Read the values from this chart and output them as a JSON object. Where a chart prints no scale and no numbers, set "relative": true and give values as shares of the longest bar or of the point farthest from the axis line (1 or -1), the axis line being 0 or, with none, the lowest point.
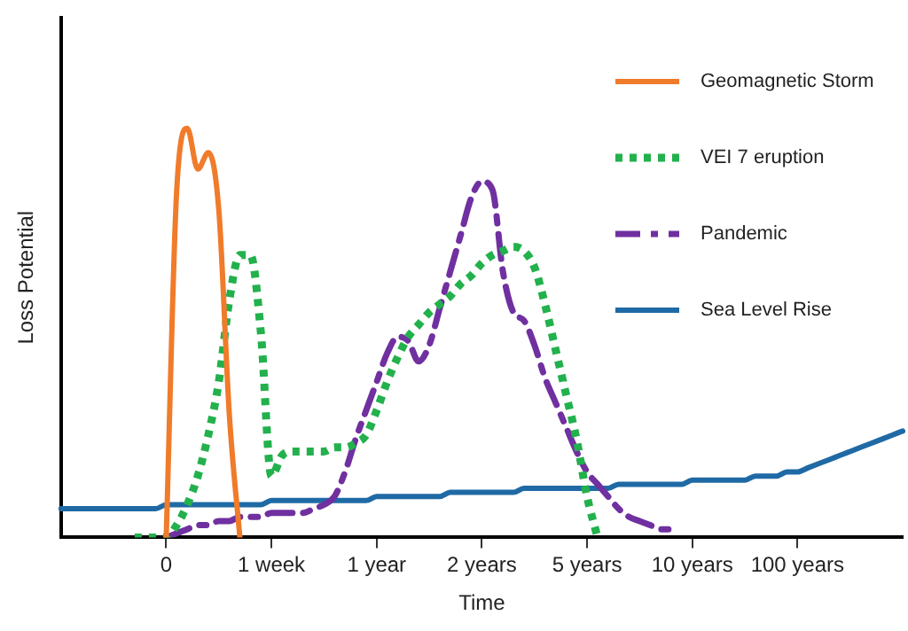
{
  "chart_data": {
    "type": "line",
    "relative": true,
    "xlabel": "Time",
    "ylabel": "Loss Potential",
    "legend": "top right",
    "grid": false,
    "marker": "none",
    "categories": [
      null,
      null,
      null,
      null,
      null,
      null,
      null,
      null,
      null,
      null,
      "0",
      null,
      null,
      null,
      null,
      null,
      null,
      null,
      null,
      null,
      "1 week",
      null,
      null,
      null,
      null,
      null,
      null,
      null,
      null,
      null,
      "1 year",
      null,
      null,
      null,
      null,
      null,
      null,
      null,
      null,
      null,
      "2 years",
      null,
      null,
      null,
      null,
      null,
      null,
      null,
      null,
      null,
      "5 years",
      null,
      null,
      null,
      null,
      null,
      null,
      null,
      null,
      null,
      "10 years",
      null,
      null,
      null,
      null,
      null,
      null,
      null,
      null,
      null,
      "100 years",
      null,
      null,
      null,
      null,
      null,
      null,
      null,
      null,
      null,
      null
    ],
    "series": [
      {
        "name": "Geomagnetic Storm",
        "color": "#f07b2a",
        "line_style": "solid",
        "values": [
          null,
          null,
          null,
          null,
          null,
          null,
          null,
          null,
          null,
          null,
          0,
          0.85,
          1,
          0.9,
          0.94,
          0.8,
          0.3,
          0,
          null,
          null,
          null,
          null,
          null,
          null,
          null,
          null,
          null,
          null,
          null,
          null,
          null,
          null,
          null,
          null,
          null,
          null,
          null,
          null,
          null,
          null,
          null,
          null,
          null,
          null,
          null,
          null,
          null,
          null,
          null,
          null,
          null,
          null,
          null,
          null,
          null,
          null,
          null,
          null,
          null,
          null,
          null,
          null,
          null,
          null,
          null,
          null,
          null,
          null,
          null,
          null,
          null,
          null,
          null,
          null,
          null,
          null,
          null,
          null,
          null,
          null,
          null
        ]
      },
      {
        "name": "VEI 7 eruption",
        "color": "#22b14c",
        "line_style": "dotted",
        "values": [
          null,
          null,
          null,
          null,
          null,
          null,
          null,
          0,
          0,
          0,
          0,
          0.03,
          0.08,
          0.15,
          0.25,
          0.38,
          0.58,
          0.69,
          0.69,
          0.5,
          0.15,
          0.2,
          0.21,
          0.21,
          0.21,
          0.21,
          0.22,
          0.22,
          0.23,
          0.25,
          0.31,
          0.38,
          0.44,
          0.49,
          0.52,
          0.55,
          0.57,
          0.59,
          0.62,
          0.64,
          0.67,
          0.69,
          0.7,
          0.71,
          0.7,
          0.66,
          0.57,
          0.46,
          0.35,
          0.24,
          0.1,
          0,
          null,
          null,
          null,
          null,
          null,
          null,
          null,
          null,
          null,
          null,
          null,
          null,
          null,
          null,
          null,
          null,
          null,
          null,
          null,
          null,
          null,
          null,
          null,
          null,
          null,
          null,
          null,
          null,
          null
        ]
      },
      {
        "name": "Pandemic",
        "color": "#7030a0",
        "line_style": "dashed",
        "values": [
          null,
          null,
          null,
          null,
          null,
          null,
          null,
          null,
          null,
          null,
          0,
          0.01,
          0.02,
          0.03,
          0.03,
          0.04,
          0.04,
          0.05,
          0.05,
          0.05,
          0.06,
          0.06,
          0.06,
          0.06,
          0.07,
          0.08,
          0.1,
          0.16,
          0.24,
          0.31,
          0.38,
          0.45,
          0.49,
          0.48,
          0.43,
          0.47,
          0.56,
          0.65,
          0.74,
          0.83,
          0.87,
          0.85,
          0.65,
          0.55,
          0.53,
          0.47,
          0.39,
          0.33,
          0.27,
          0.21,
          0.16,
          0.13,
          0.1,
          0.07,
          0.05,
          0.04,
          0.03,
          0.02,
          0.02,
          null,
          null,
          null,
          null,
          null,
          null,
          null,
          null,
          null,
          null,
          null,
          null,
          null,
          null,
          null,
          null,
          null,
          null,
          null,
          null,
          null,
          null
        ]
      },
      {
        "name": "Sea Level Rise",
        "color": "#1f6aa5",
        "line_style": "solid",
        "values": [
          0.07,
          0.07,
          0.07,
          0.07,
          0.07,
          0.07,
          0.07,
          0.07,
          0.07,
          0.07,
          0.08,
          0.08,
          0.08,
          0.08,
          0.08,
          0.08,
          0.08,
          0.08,
          0.08,
          0.08,
          0.09,
          0.09,
          0.09,
          0.09,
          0.09,
          0.09,
          0.09,
          0.09,
          0.09,
          0.09,
          0.1,
          0.1,
          0.1,
          0.1,
          0.1,
          0.1,
          0.1,
          0.11,
          0.11,
          0.11,
          0.11,
          0.11,
          0.11,
          0.11,
          0.12,
          0.12,
          0.12,
          0.12,
          0.12,
          0.12,
          0.12,
          0.12,
          0.12,
          0.13,
          0.13,
          0.13,
          0.13,
          0.13,
          0.13,
          0.13,
          0.14,
          0.14,
          0.14,
          0.14,
          0.14,
          0.14,
          0.15,
          0.15,
          0.15,
          0.16,
          0.16,
          0.17,
          0.18,
          0.19,
          0.2,
          0.21,
          0.22,
          0.23,
          0.24,
          0.25,
          0.26
        ]
      }
    ]
  }
}
